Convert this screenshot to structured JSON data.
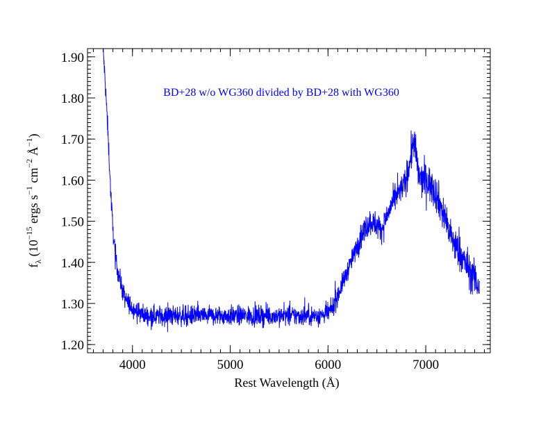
{
  "chart_data": {
    "type": "line",
    "title": "",
    "annotation": "BD+28 w/o WG360 divided by BD+28 with WG360",
    "xlabel": "Rest Wavelength (Å)",
    "ylabel": {
      "base": "f",
      "base_sub": "λ",
      "open": " (10",
      "exp1": "−15",
      "mid1": " ergs s",
      "exp2": "−1",
      "mid2": " cm",
      "exp3": "−2",
      "mid3": " Å",
      "exp4": "−1",
      "close": ")"
    },
    "xlim": [
      3540,
      7660
    ],
    "ylim": [
      1.18,
      1.92
    ],
    "x_ticks": [
      4000,
      5000,
      6000,
      7000
    ],
    "x_tick_labels": [
      "4000",
      "5000",
      "6000",
      "7000"
    ],
    "y_ticks": [
      1.2,
      1.3,
      1.4,
      1.5,
      1.6,
      1.7,
      1.8,
      1.9
    ],
    "y_tick_labels": [
      "1.20",
      "1.30",
      "1.40",
      "1.50",
      "1.60",
      "1.70",
      "1.80",
      "1.90"
    ],
    "grid": false,
    "legend": "none",
    "line_color": "#0000ff",
    "annotation_color": "#0000ff",
    "series": [
      {
        "x": [
          3700,
          3720,
          3740,
          3760,
          3780,
          3800,
          3820,
          3840,
          3860,
          3880,
          3900,
          3920,
          3940,
          3960,
          3980,
          4000,
          4050,
          4100,
          4150,
          4200,
          4300,
          4400,
          4500,
          4600,
          4700,
          4800,
          4900,
          5000,
          5100,
          5200,
          5300,
          5400,
          5500,
          5600,
          5700,
          5800,
          5900,
          6000,
          6050,
          6100,
          6150,
          6200,
          6250,
          6300,
          6350,
          6400,
          6450,
          6500,
          6550,
          6600,
          6650,
          6700,
          6750,
          6800,
          6850,
          6880,
          6900,
          6920,
          6950,
          7000,
          7050,
          7100,
          7150,
          7200,
          7250,
          7300,
          7350,
          7400,
          7450,
          7500,
          7550
        ],
        "y": [
          1.92,
          1.84,
          1.76,
          1.66,
          1.56,
          1.48,
          1.43,
          1.39,
          1.37,
          1.35,
          1.33,
          1.315,
          1.305,
          1.3,
          1.295,
          1.29,
          1.28,
          1.275,
          1.27,
          1.27,
          1.27,
          1.27,
          1.27,
          1.27,
          1.27,
          1.27,
          1.27,
          1.27,
          1.27,
          1.27,
          1.27,
          1.27,
          1.27,
          1.27,
          1.27,
          1.27,
          1.27,
          1.275,
          1.29,
          1.32,
          1.35,
          1.38,
          1.41,
          1.44,
          1.47,
          1.49,
          1.5,
          1.49,
          1.48,
          1.51,
          1.54,
          1.56,
          1.58,
          1.6,
          1.66,
          1.7,
          1.66,
          1.62,
          1.6,
          1.6,
          1.59,
          1.57,
          1.54,
          1.5,
          1.47,
          1.44,
          1.42,
          1.4,
          1.38,
          1.36,
          1.34
        ],
        "noise": 0.012
      }
    ]
  }
}
